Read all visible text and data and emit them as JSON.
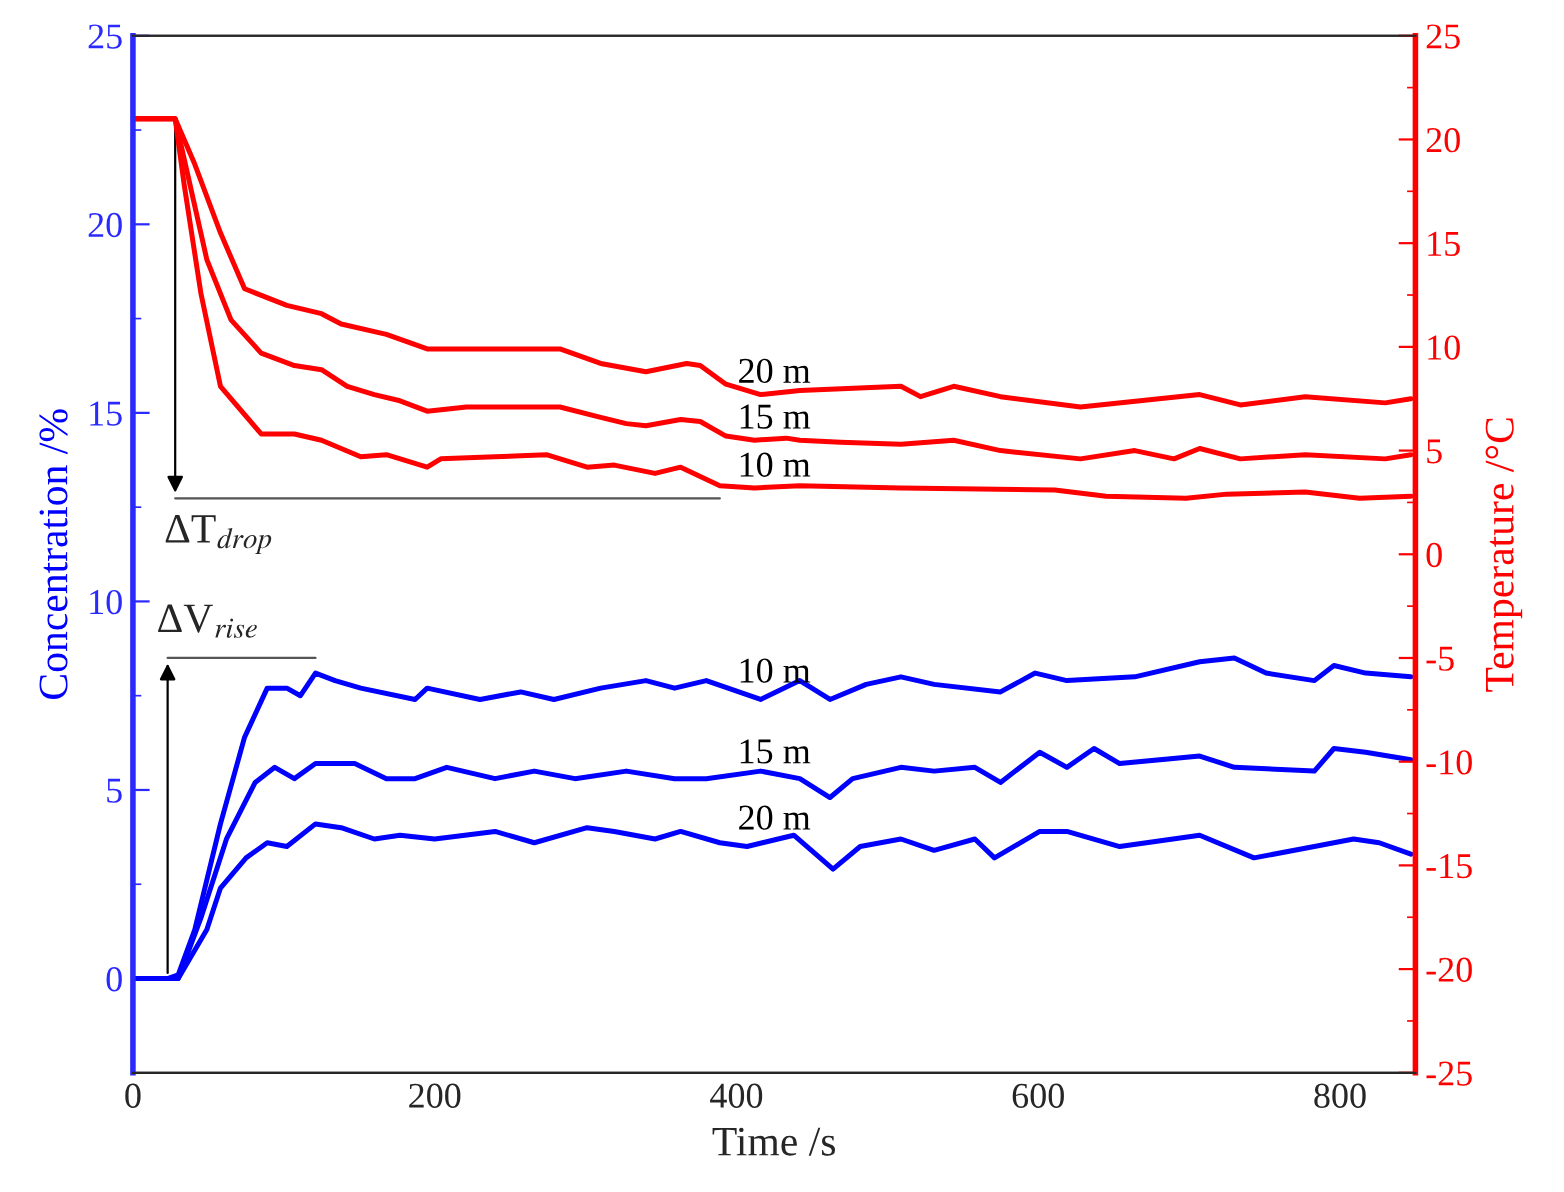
{
  "chart_data": {
    "type": "line",
    "xlabel": "Time /s",
    "ylabel": "Concentration /%",
    "y2label": "Temperature /°C",
    "xlim": [
      0,
      850
    ],
    "xticks": [
      0,
      200,
      400,
      600,
      800
    ],
    "ylim": [
      -2.5,
      25
    ],
    "yticks": [
      0,
      5,
      10,
      15,
      20,
      25
    ],
    "y2lim": [
      -25,
      25
    ],
    "y2ticks": [
      -25,
      -20,
      -15,
      -10,
      -5,
      0,
      5,
      10,
      15,
      20,
      25
    ],
    "grid": false,
    "legend": false,
    "marker": "none",
    "line_style": "solid",
    "series": [
      {
        "name": "20 m",
        "color": "#ff0000",
        "axis": "y2",
        "x": [
          0,
          28,
          41,
          58,
          74,
          102,
          125,
          138,
          168,
          195,
          257,
          283,
          310,
          340,
          367,
          376,
          393,
          416,
          442,
          509,
          522,
          544,
          575,
          628,
          707,
          734,
          777,
          830,
          847
        ],
        "values": [
          21.0,
          21.0,
          18.8,
          15.5,
          12.8,
          12.0,
          11.6,
          11.1,
          10.6,
          9.9,
          9.9,
          9.9,
          9.2,
          8.8,
          9.2,
          9.1,
          8.2,
          7.7,
          7.9,
          8.1,
          7.6,
          8.1,
          7.6,
          7.1,
          7.7,
          7.2,
          7.6,
          7.3,
          7.5
        ]
      },
      {
        "name": "15 m",
        "color": "#ff0000",
        "axis": "y2",
        "x": [
          0,
          28,
          36,
          49,
          65,
          85,
          107,
          125,
          142,
          160,
          177,
          195,
          221,
          283,
          310,
          327,
          340,
          363,
          376,
          393,
          412,
          433,
          442,
          469,
          509,
          544,
          575,
          628,
          664,
          690,
          707,
          734,
          777,
          830,
          847
        ],
        "values": [
          21.0,
          21.0,
          18.4,
          14.2,
          11.3,
          9.7,
          9.1,
          8.9,
          8.1,
          7.7,
          7.4,
          6.9,
          7.1,
          7.1,
          6.6,
          6.3,
          6.2,
          6.5,
          6.4,
          5.7,
          5.5,
          5.6,
          5.5,
          5.4,
          5.3,
          5.5,
          5.0,
          4.6,
          5.0,
          4.6,
          5.1,
          4.6,
          4.8,
          4.6,
          4.8
        ]
      },
      {
        "name": "10 m",
        "color": "#ff0000",
        "axis": "y2",
        "x": [
          0,
          28,
          34,
          45,
          58,
          85,
          107,
          125,
          151,
          168,
          195,
          204,
          240,
          274,
          301,
          319,
          346,
          363,
          389,
          412,
          442,
          509,
          611,
          645,
          698,
          725,
          777,
          813,
          847
        ],
        "values": [
          21.0,
          21.0,
          17.8,
          12.6,
          8.1,
          5.8,
          5.8,
          5.5,
          4.7,
          4.8,
          4.2,
          4.6,
          4.7,
          4.8,
          4.2,
          4.3,
          3.9,
          4.2,
          3.3,
          3.2,
          3.3,
          3.2,
          3.1,
          2.8,
          2.7,
          2.9,
          3.0,
          2.7,
          2.8
        ]
      },
      {
        "name": "10 m",
        "color": "#0000ff",
        "axis": "y",
        "x": [
          0,
          23,
          30,
          41,
          58,
          74,
          89,
          102,
          111,
          121,
          134,
          151,
          187,
          195,
          230,
          257,
          279,
          310,
          340,
          359,
          380,
          416,
          442,
          462,
          486,
          509,
          531,
          575,
          598,
          619,
          664,
          707,
          730,
          751,
          783,
          796,
          817,
          847
        ],
        "values": [
          0,
          0,
          0.1,
          1.3,
          4.1,
          6.4,
          7.7,
          7.7,
          7.5,
          8.1,
          7.9,
          7.7,
          7.4,
          7.7,
          7.4,
          7.6,
          7.4,
          7.7,
          7.9,
          7.7,
          7.9,
          7.4,
          7.9,
          7.4,
          7.8,
          8.0,
          7.8,
          7.6,
          8.1,
          7.9,
          8.0,
          8.4,
          8.5,
          8.1,
          7.9,
          8.3,
          8.1,
          8.0
        ]
      },
      {
        "name": "15 m",
        "color": "#0000ff",
        "axis": "y",
        "x": [
          0,
          30,
          45,
          62,
          81,
          94,
          107,
          121,
          147,
          168,
          187,
          208,
          240,
          266,
          293,
          327,
          359,
          380,
          416,
          442,
          462,
          477,
          509,
          531,
          558,
          575,
          601,
          619,
          637,
          654,
          707,
          730,
          783,
          796,
          817,
          847
        ],
        "values": [
          0,
          0,
          1.6,
          3.7,
          5.2,
          5.6,
          5.3,
          5.7,
          5.7,
          5.3,
          5.3,
          5.6,
          5.3,
          5.5,
          5.3,
          5.5,
          5.3,
          5.3,
          5.5,
          5.3,
          4.8,
          5.3,
          5.6,
          5.5,
          5.6,
          5.2,
          6.0,
          5.6,
          6.1,
          5.7,
          5.9,
          5.6,
          5.5,
          6.1,
          6.0,
          5.8
        ]
      },
      {
        "name": "20 m",
        "color": "#0000ff",
        "axis": "y",
        "x": [
          0,
          30,
          49,
          58,
          75,
          89,
          102,
          121,
          138,
          160,
          177,
          200,
          240,
          266,
          301,
          319,
          346,
          363,
          389,
          407,
          438,
          464,
          482,
          509,
          531,
          558,
          571,
          601,
          619,
          654,
          707,
          743,
          783,
          809,
          826,
          847
        ],
        "values": [
          0,
          0,
          1.3,
          2.4,
          3.2,
          3.6,
          3.5,
          4.1,
          4.0,
          3.7,
          3.8,
          3.7,
          3.9,
          3.6,
          4.0,
          3.9,
          3.7,
          3.9,
          3.6,
          3.5,
          3.8,
          2.9,
          3.5,
          3.7,
          3.4,
          3.7,
          3.2,
          3.9,
          3.9,
          3.5,
          3.8,
          3.2,
          3.5,
          3.7,
          3.6,
          3.3
        ]
      }
    ],
    "annotations": [
      "ΔT$_{drop}$",
      "ΔV$_{rise}$"
    ]
  }
}
